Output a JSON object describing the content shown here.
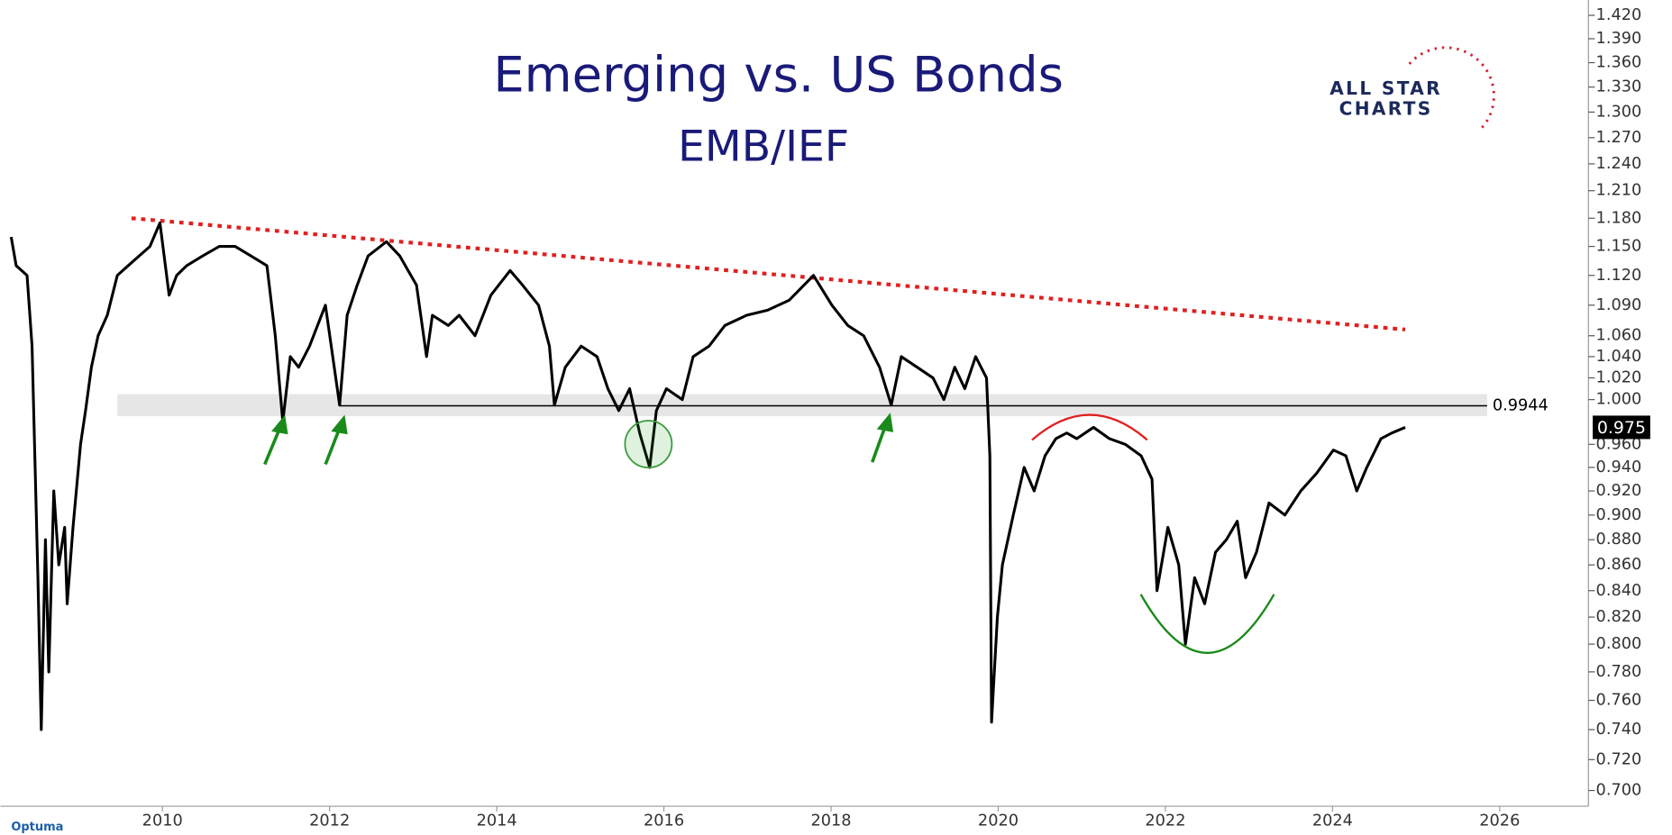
{
  "chart_data": {
    "type": "line",
    "title": "Emerging vs. US Bonds",
    "subtitle": "EMB/IEF",
    "logo": {
      "line1": "ALL STAR",
      "line2": "CHARTS"
    },
    "watermark": "Optuma",
    "yscale": "log",
    "grid": false,
    "xlim": [
      2008.1,
      2027.1
    ],
    "ylim": [
      0.69,
      1.44
    ],
    "xticks": [
      2010,
      2012,
      2014,
      2016,
      2018,
      2020,
      2022,
      2024,
      2026
    ],
    "yticks": [
      {
        "value": 1.42,
        "label": "1.420"
      },
      {
        "value": 1.39,
        "label": "1.390"
      },
      {
        "value": 1.36,
        "label": "1.360"
      },
      {
        "value": 1.33,
        "label": "1.330"
      },
      {
        "value": 1.3,
        "label": "1.300"
      },
      {
        "value": 1.27,
        "label": "1.270"
      },
      {
        "value": 1.24,
        "label": "1.240"
      },
      {
        "value": 1.21,
        "label": "1.210"
      },
      {
        "value": 1.18,
        "label": "1.180"
      },
      {
        "value": 1.15,
        "label": "1.150"
      },
      {
        "value": 1.12,
        "label": "1.120"
      },
      {
        "value": 1.09,
        "label": "1.090"
      },
      {
        "value": 1.06,
        "label": "1.060"
      },
      {
        "value": 1.04,
        "label": "1.040"
      },
      {
        "value": 1.02,
        "label": "1.020"
      },
      {
        "value": 1.0,
        "label": "1.000"
      },
      {
        "value": 0.96,
        "label": "0.960"
      },
      {
        "value": 0.94,
        "label": "0.940"
      },
      {
        "value": 0.92,
        "label": "0.920"
      },
      {
        "value": 0.9,
        "label": "0.900"
      },
      {
        "value": 0.88,
        "label": "0.880"
      },
      {
        "value": 0.86,
        "label": "0.860"
      },
      {
        "value": 0.84,
        "label": "0.840"
      },
      {
        "value": 0.82,
        "label": "0.820"
      },
      {
        "value": 0.8,
        "label": "0.800"
      },
      {
        "value": 0.78,
        "label": "0.780"
      },
      {
        "value": 0.76,
        "label": "0.760"
      },
      {
        "value": 0.74,
        "label": "0.740"
      },
      {
        "value": 0.72,
        "label": "0.720"
      },
      {
        "value": 0.7,
        "label": "0.700"
      }
    ],
    "x": [
      2008.19,
      2008.25,
      2008.38,
      2008.44,
      2008.51,
      2008.55,
      2008.6,
      2008.64,
      2008.7,
      2008.76,
      2008.83,
      2008.86,
      2008.93,
      2009.02,
      2009.08,
      2009.15,
      2009.23,
      2009.34,
      2009.46,
      2009.59,
      2009.72,
      2009.85,
      2009.97,
      2010.08,
      2010.17,
      2010.29,
      2010.48,
      2010.68,
      2010.87,
      2011.06,
      2011.25,
      2011.35,
      2011.44,
      2011.53,
      2011.63,
      2011.76,
      2011.95,
      2012.12,
      2012.21,
      2012.33,
      2012.46,
      2012.68,
      2012.84,
      2013.04,
      2013.16,
      2013.23,
      2013.42,
      2013.55,
      2013.74,
      2013.93,
      2014.16,
      2014.31,
      2014.5,
      2014.63,
      2014.69,
      2014.82,
      2015.01,
      2015.2,
      2015.33,
      2015.46,
      2015.59,
      2015.71,
      2015.83,
      2015.91,
      2016.03,
      2016.22,
      2016.35,
      2016.54,
      2016.73,
      2016.99,
      2017.24,
      2017.5,
      2017.79,
      2018.01,
      2018.2,
      2018.39,
      2018.58,
      2018.72,
      2018.84,
      2019.03,
      2019.22,
      2019.35,
      2019.48,
      2019.6,
      2019.73,
      2019.86,
      2019.9,
      2019.92,
      2019.99,
      2020.05,
      2020.18,
      2020.31,
      2020.43,
      2020.56,
      2020.69,
      2020.82,
      2020.94,
      2021.14,
      2021.33,
      2021.52,
      2021.71,
      2021.84,
      2021.9,
      2022.03,
      2022.16,
      2022.24,
      2022.35,
      2022.47,
      2022.6,
      2022.73,
      2022.86,
      2022.96,
      2023.09,
      2023.24,
      2023.43,
      2023.62,
      2023.81,
      2024.01,
      2024.16,
      2024.29,
      2024.41,
      2024.58,
      2024.71,
      2024.87
    ],
    "series": [
      {
        "color": "#000000",
        "values": [
          1.16,
          1.13,
          1.12,
          1.05,
          0.85,
          0.74,
          0.88,
          0.78,
          0.92,
          0.86,
          0.89,
          0.83,
          0.89,
          0.96,
          0.99,
          1.03,
          1.06,
          1.08,
          1.12,
          1.13,
          1.14,
          1.15,
          1.175,
          1.1,
          1.12,
          1.13,
          1.14,
          1.15,
          1.15,
          1.14,
          1.13,
          1.06,
          0.98,
          1.04,
          1.03,
          1.05,
          1.09,
          0.995,
          1.08,
          1.11,
          1.14,
          1.155,
          1.14,
          1.11,
          1.04,
          1.08,
          1.07,
          1.08,
          1.06,
          1.1,
          1.125,
          1.11,
          1.09,
          1.05,
          0.995,
          1.03,
          1.05,
          1.04,
          1.01,
          0.99,
          1.01,
          0.97,
          0.94,
          0.99,
          1.01,
          1.0,
          1.04,
          1.05,
          1.07,
          1.08,
          1.085,
          1.095,
          1.12,
          1.09,
          1.07,
          1.06,
          1.03,
          0.995,
          1.04,
          1.03,
          1.02,
          1.0,
          1.03,
          1.01,
          1.04,
          1.02,
          0.95,
          0.745,
          0.82,
          0.86,
          0.9,
          0.94,
          0.92,
          0.95,
          0.965,
          0.97,
          0.965,
          0.975,
          0.965,
          0.96,
          0.95,
          0.93,
          0.84,
          0.89,
          0.86,
          0.8,
          0.85,
          0.83,
          0.87,
          0.88,
          0.895,
          0.85,
          0.87,
          0.91,
          0.9,
          0.92,
          0.935,
          0.955,
          0.95,
          0.92,
          0.94,
          0.965,
          0.97,
          0.975
        ]
      }
    ],
    "trendline": {
      "color": "#e02020",
      "x": [
        2009.63,
        2024.87
      ],
      "values": [
        1.18,
        1.066
      ]
    },
    "band": {
      "color": "#e6e6e6",
      "x": [
        2009.46,
        2025.85
      ],
      "range": [
        0.985,
        1.005
      ]
    },
    "level": {
      "color": "#000000",
      "x": [
        2012.12,
        2025.85
      ],
      "value": 0.9944
    }
  }
}
